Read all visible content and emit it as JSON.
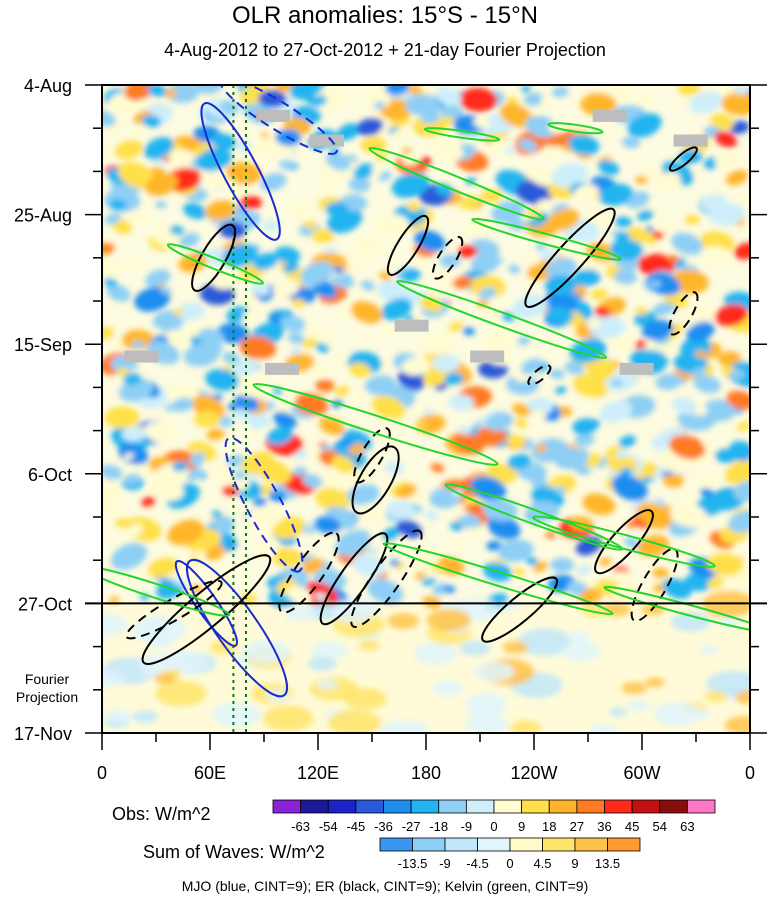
{
  "chart_data": {
    "type": "heatmap",
    "title": "OLR anomalies: 15°S - 15°N",
    "subtitle": "4-Aug-2012 to 27-Oct-2012 + 21-day Fourier Projection",
    "x_ticks": [
      "0",
      "60E",
      "120E",
      "180",
      "120W",
      "60W",
      "0"
    ],
    "x_tick_values": [
      0,
      60,
      120,
      180,
      240,
      300,
      360
    ],
    "y_ticks": [
      "4-Aug",
      "25-Aug",
      "15-Sep",
      "6-Oct",
      "27-Oct",
      "17-Nov"
    ],
    "y_tick_days": [
      0,
      21,
      42,
      63,
      84,
      105
    ],
    "xlim": [
      0,
      360
    ],
    "ylim_days": [
      0,
      105
    ],
    "observation_end_day": 84,
    "projection_label": "Fourier Projection",
    "obs_legend": {
      "label": "Obs: W/m^2",
      "levels": [
        "-63",
        "-54",
        "-45",
        "-36",
        "-27",
        "-18",
        "-9",
        "0",
        "9",
        "18",
        "27",
        "36",
        "45",
        "54",
        "63"
      ],
      "colors": [
        "#8b22d6",
        "#1a1a9a",
        "#1c22c8",
        "#2a5ad8",
        "#1e8ef0",
        "#20b4f0",
        "#8ecff5",
        "#cdeefa",
        "#fffcd2",
        "#ffe04a",
        "#ffb52a",
        "#ff7a22",
        "#ff2a1a",
        "#c41010",
        "#8a0d0d",
        "#ff78c8"
      ]
    },
    "waves_legend": {
      "label": "Sum of Waves: W/m^2",
      "levels": [
        "-13.5",
        "-9",
        "-4.5",
        "0",
        "4.5",
        "9",
        "13.5"
      ],
      "colors": [
        "#3a96f0",
        "#8ecff5",
        "#bfe6fa",
        "#e1f5fc",
        "#fffac8",
        "#ffe46a",
        "#ffc248",
        "#ff9a30"
      ]
    },
    "wave_contours": [
      {
        "wave": "MJO",
        "color": "#1a2ad0",
        "lon": 77,
        "day": 14,
        "rx": 45,
        "ry": 10,
        "angle": 62,
        "dashed": false
      },
      {
        "wave": "MJO",
        "color": "#1a2ad0",
        "lon": 98,
        "day": 5,
        "rx": 40,
        "ry": 8,
        "angle": 32,
        "dashed": true
      },
      {
        "wave": "MJO",
        "color": "#1a2ad0",
        "lon": 90,
        "day": 68,
        "rx": 44,
        "ry": 10,
        "angle": 62,
        "dashed": true
      },
      {
        "wave": "MJO",
        "color": "#1a2ad0",
        "lon": 75,
        "day": 88,
        "rx": 48,
        "ry": 12,
        "angle": 55,
        "dashed": false
      },
      {
        "wave": "MJO",
        "color": "#1a2ad0",
        "lon": 58,
        "day": 84,
        "rx": 30,
        "ry": 6,
        "angle": 55,
        "dashed": false
      },
      {
        "wave": "ER",
        "color": "#000000",
        "lon": 62,
        "day": 28,
        "rx": 22,
        "ry": 7,
        "angle": -60,
        "dashed": false
      },
      {
        "wave": "ER",
        "color": "#000000",
        "lon": 170,
        "day": 26,
        "rx": 20,
        "ry": 6,
        "angle": -58,
        "dashed": false
      },
      {
        "wave": "ER",
        "color": "#000000",
        "lon": 192,
        "day": 28,
        "rx": 14,
        "ry": 5,
        "angle": -58,
        "dashed": true
      },
      {
        "wave": "ER",
        "color": "#000000",
        "lon": 260,
        "day": 28,
        "rx": 38,
        "ry": 8,
        "angle": -48,
        "dashed": false
      },
      {
        "wave": "ER",
        "color": "#000000",
        "lon": 323,
        "day": 37,
        "rx": 14,
        "ry": 5,
        "angle": -60,
        "dashed": true
      },
      {
        "wave": "ER",
        "color": "#000000",
        "lon": 323,
        "day": 12,
        "rx": 10,
        "ry": 3,
        "angle": -40,
        "dashed": false
      },
      {
        "wave": "ER",
        "color": "#000000",
        "lon": 150,
        "day": 60,
        "rx": 18,
        "ry": 6,
        "angle": -60,
        "dashed": true
      },
      {
        "wave": "ER",
        "color": "#000000",
        "lon": 152,
        "day": 64,
        "rx": 22,
        "ry": 9,
        "angle": -60,
        "dashed": false
      },
      {
        "wave": "ER",
        "color": "#000000",
        "lon": 243,
        "day": 47,
        "rx": 8,
        "ry": 3,
        "angle": -40,
        "dashed": true
      },
      {
        "wave": "ER",
        "color": "#000000",
        "lon": 290,
        "day": 74,
        "rx": 24,
        "ry": 7,
        "angle": -48,
        "dashed": false
      },
      {
        "wave": "ER",
        "color": "#000000",
        "lon": 307,
        "day": 81,
        "rx": 24,
        "ry": 7,
        "angle": -60,
        "dashed": true
      },
      {
        "wave": "ER",
        "color": "#000000",
        "lon": 232,
        "day": 85,
        "rx": 28,
        "ry": 7,
        "angle": -40,
        "dashed": false
      },
      {
        "wave": "ER",
        "color": "#000000",
        "lon": 58,
        "day": 85,
        "rx": 48,
        "ry": 10,
        "angle": -40,
        "dashed": false
      },
      {
        "wave": "ER",
        "color": "#000000",
        "lon": 40,
        "day": 85,
        "rx": 32,
        "ry": 6,
        "angle": -30,
        "dashed": true
      },
      {
        "wave": "ER",
        "color": "#000000",
        "lon": 115,
        "day": 79,
        "rx": 28,
        "ry": 8,
        "angle": -55,
        "dashed": true
      },
      {
        "wave": "ER",
        "color": "#000000",
        "lon": 140,
        "day": 80,
        "rx": 32,
        "ry": 8,
        "angle": -55,
        "dashed": false
      },
      {
        "wave": "ER",
        "color": "#000000",
        "lon": 158,
        "day": 80,
        "rx": 34,
        "ry": 8,
        "angle": -55,
        "dashed": true
      },
      {
        "wave": "Kelvin",
        "color": "#22d62a",
        "lon": 197,
        "day": 16,
        "rx": 55,
        "ry": 4,
        "angle": 22,
        "dashed": false
      },
      {
        "wave": "Kelvin",
        "color": "#22d62a",
        "lon": 222,
        "day": 38,
        "rx": 65,
        "ry": 4,
        "angle": 20,
        "dashed": false
      },
      {
        "wave": "Kelvin",
        "color": "#22d62a",
        "lon": 247,
        "day": 25,
        "rx": 45,
        "ry": 3,
        "angle": 15,
        "dashed": false
      },
      {
        "wave": "Kelvin",
        "color": "#22d62a",
        "lon": 63,
        "day": 29,
        "rx": 30,
        "ry": 3,
        "angle": 22,
        "dashed": false
      },
      {
        "wave": "Kelvin",
        "color": "#22d62a",
        "lon": 152,
        "day": 55,
        "rx": 75,
        "ry": 5,
        "angle": 18,
        "dashed": false
      },
      {
        "wave": "Kelvin",
        "color": "#22d62a",
        "lon": 240,
        "day": 70,
        "rx": 55,
        "ry": 4,
        "angle": 20,
        "dashed": false
      },
      {
        "wave": "Kelvin",
        "color": "#22d62a",
        "lon": 290,
        "day": 74,
        "rx": 55,
        "ry": 4,
        "angle": 15,
        "dashed": false
      },
      {
        "wave": "Kelvin",
        "color": "#22d62a",
        "lon": 220,
        "day": 80,
        "rx": 70,
        "ry": 4,
        "angle": 17,
        "dashed": false
      },
      {
        "wave": "Kelvin",
        "color": "#22d62a",
        "lon": 30,
        "day": 82,
        "rx": 45,
        "ry": 4,
        "angle": 18,
        "dashed": false
      },
      {
        "wave": "Kelvin",
        "color": "#22d62a",
        "lon": 325,
        "day": 85,
        "rx": 50,
        "ry": 3,
        "angle": 15,
        "dashed": false
      },
      {
        "wave": "Kelvin",
        "color": "#22d62a",
        "lon": 200,
        "day": 8,
        "rx": 22,
        "ry": 2,
        "angle": 8,
        "dashed": false
      },
      {
        "wave": "Kelvin",
        "color": "#22d62a",
        "lon": 263,
        "day": 7,
        "rx": 16,
        "ry": 2,
        "angle": 8,
        "dashed": false
      }
    ],
    "missing_data_boxes": [
      {
        "lon": 95,
        "day": 5
      },
      {
        "lon": 125,
        "day": 9
      },
      {
        "lon": 282,
        "day": 5
      },
      {
        "lon": 327,
        "day": 9
      },
      {
        "lon": 172,
        "day": 39
      },
      {
        "lon": 214,
        "day": 44
      },
      {
        "lon": 22,
        "day": 44
      },
      {
        "lon": 100,
        "day": 46
      },
      {
        "lon": 297,
        "day": 46
      }
    ],
    "dotted_meridians_lon": [
      73,
      80
    ],
    "footnote": "MJO (blue, CINT=9); ER (black, CINT=9); Kelvin (green, CINT=9)"
  }
}
